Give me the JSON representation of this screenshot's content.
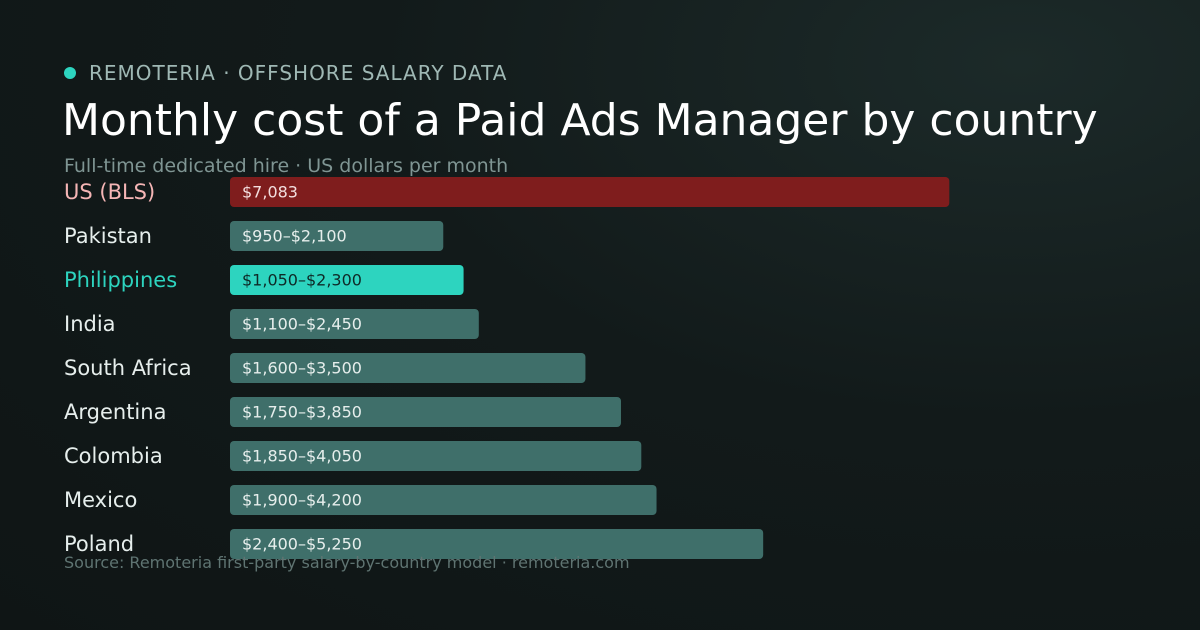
{
  "brand": {
    "text": "REMOTERIA · OFFSHORE SALARY DATA",
    "dot_color": "#2dd4bf"
  },
  "title": "Monthly cost of a Paid Ads Manager by country",
  "subtitle": "Full-time dedicated hire · US dollars per month",
  "source": "Source: Remoteria first-party salary-by-country model · remoteria.com",
  "chart_data": {
    "type": "bar",
    "orientation": "horizontal",
    "title": "Monthly cost of a Paid Ads Manager by country",
    "xlim": [
      0,
      9000
    ],
    "grid": false,
    "categories": [
      "US (BLS)",
      "Pakistan",
      "Philippines",
      "India",
      "South Africa",
      "Argentina",
      "Colombia",
      "Mexico",
      "Poland"
    ],
    "values": [
      7083,
      2100,
      2300,
      2450,
      3500,
      3850,
      4050,
      4200,
      5250
    ],
    "ranges": [
      [
        7083,
        7083
      ],
      [
        950,
        2100
      ],
      [
        1050,
        2300
      ],
      [
        1100,
        2450
      ],
      [
        1600,
        3500
      ],
      [
        1750,
        3850
      ],
      [
        1850,
        4050
      ],
      [
        1900,
        4200
      ],
      [
        2400,
        5250
      ]
    ],
    "data_labels": [
      "$7,083",
      "$950–$2,100",
      "$1,050–$2,300",
      "$1,100–$2,450",
      "$1,600–$3,500",
      "$1,750–$3,850",
      "$1,850–$4,050",
      "$1,900–$4,200",
      "$2,400–$5,250"
    ],
    "highlight": {
      "US (BLS)": {
        "bar_color": "#7f1d1d",
        "label_color": "#f5b5b5",
        "value_color": "#f3dede"
      },
      "Philippines": {
        "bar_color": "#2dd4bf",
        "label_color": "#2dd4bf",
        "value_color": "#0e2a27"
      }
    },
    "default_colors": {
      "bar_color": "#3f6f6a",
      "label_color": "#e6eeec",
      "value_color": "#e6eeec"
    }
  }
}
